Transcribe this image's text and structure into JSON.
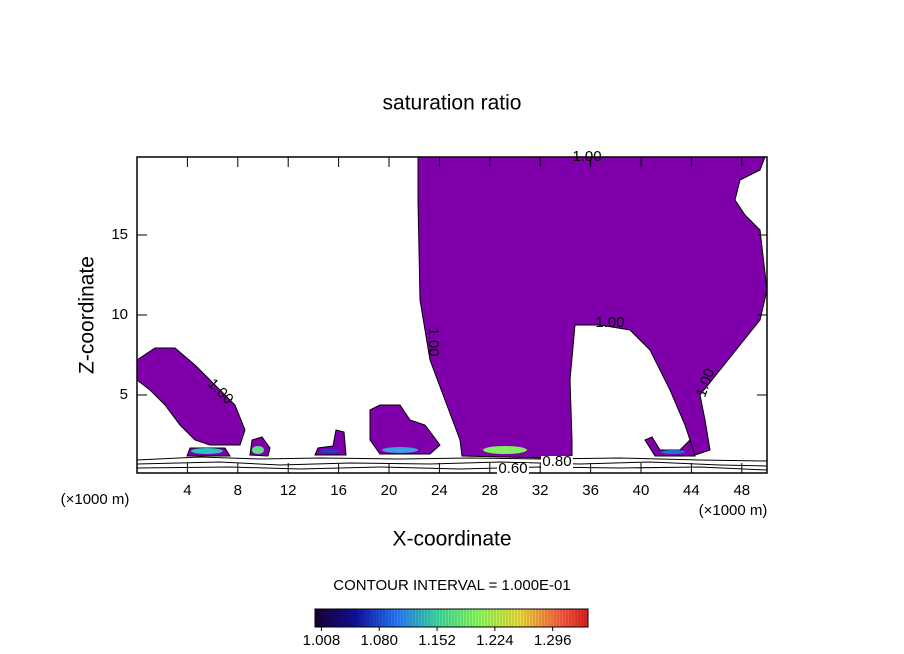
{
  "chart_data": {
    "type": "contour",
    "title": "saturation ratio",
    "xlabel": "X-coordinate",
    "ylabel": "Z-coordinate",
    "x_unit": "(×1000 m)",
    "xlim": [
      0,
      50
    ],
    "ylim": [
      0,
      20
    ],
    "xticks": [
      4,
      8,
      12,
      16,
      20,
      24,
      28,
      32,
      36,
      40,
      44,
      48
    ],
    "yticks": [
      5,
      10,
      15
    ],
    "fill_color": "#7f00aa",
    "contour_labels": [
      {
        "value": 1,
        "label": "1.00"
      },
      {
        "value": 1,
        "label": "1.00"
      },
      {
        "value": 1,
        "label": "1.00"
      },
      {
        "value": 1,
        "label": "1.00"
      },
      {
        "value": 1,
        "label": "1.00"
      },
      {
        "value": 0.6,
        "label": "0.60"
      },
      {
        "value": 0.8,
        "label": "0.80"
      }
    ],
    "contour_interval": "CONTOUR INTERVAL = 1.000E-01",
    "colorbar": {
      "lim": [
        1.0,
        1.34
      ],
      "ticks": [
        {
          "value": 1.008,
          "label": "1.008"
        },
        {
          "value": 1.08,
          "label": "1.080"
        },
        {
          "value": 1.152,
          "label": "1.152"
        },
        {
          "value": 1.224,
          "label": "1.224"
        },
        {
          "value": 1.296,
          "label": "1.296"
        }
      ]
    }
  }
}
